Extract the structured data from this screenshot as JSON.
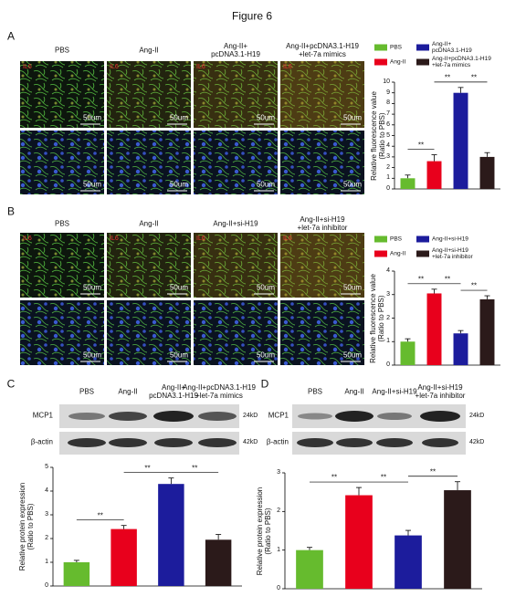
{
  "figure_title": "Figure 6",
  "panel_a": {
    "label": "A",
    "stain": "IL6",
    "scale": "50um"
  },
  "panel_b": {
    "label": "B",
    "stain": "IL6",
    "scale": "50um"
  },
  "panel_c": {
    "label": "C",
    "rows": [
      "MCP1",
      "β-actin"
    ],
    "sizes": [
      "24kD",
      "42kD"
    ]
  },
  "panel_d": {
    "label": "D",
    "rows": [
      "MCP1",
      "β-actin"
    ],
    "sizes": [
      "24kD",
      "42kD"
    ]
  },
  "chart_data": [
    {
      "type": "bar",
      "ylabel": "Relative fluorescence value\n(Ratio to PBS)",
      "categories": [
        "PBS",
        "Ang-II",
        "Ang-II+\npcDNA3.1-H19",
        "Ang-II+pcDNA3.1-H19\n+let-7a mimics"
      ],
      "values": [
        1.0,
        2.6,
        9.0,
        3.0
      ],
      "errors": [
        0.3,
        0.6,
        0.5,
        0.4
      ],
      "colors": [
        "#66bb2e",
        "#e8001c",
        "#1c1c9c",
        "#2b1a1a"
      ],
      "ylim": [
        0,
        10
      ],
      "yticks": [
        0,
        1,
        2,
        3,
        4,
        5,
        6,
        7,
        8,
        9,
        10
      ],
      "legend": true,
      "significance": [
        {
          "label": "**",
          "from": 0,
          "to": 1
        },
        {
          "label": "**",
          "from": 1,
          "to": 2
        },
        {
          "label": "**",
          "from": 2,
          "to": 3
        }
      ]
    },
    {
      "type": "bar",
      "ylabel": "Relative fluorescence value\n(Ratio to PBS)",
      "categories": [
        "PBS",
        "Ang-II",
        "Ang-II+si-H19",
        "Ang-II+si-H19\n+let-7a inhibitor"
      ],
      "values": [
        1.0,
        3.05,
        1.35,
        2.8
      ],
      "errors": [
        0.12,
        0.18,
        0.12,
        0.15
      ],
      "colors": [
        "#66bb2e",
        "#e8001c",
        "#1c1c9c",
        "#2b1a1a"
      ],
      "ylim": [
        0,
        4
      ],
      "yticks": [
        0,
        1,
        2,
        3,
        4
      ],
      "legend": true,
      "significance": [
        {
          "label": "**",
          "from": 0,
          "to": 1
        },
        {
          "label": "**",
          "from": 1,
          "to": 2
        },
        {
          "label": "**",
          "from": 2,
          "to": 3
        }
      ]
    },
    {
      "type": "bar",
      "ylabel": "Relative protein  expression\n(Ratio to PBS)",
      "categories": [
        "PBS",
        "Ang-II",
        "Ang-II+\npcDNA3.1-H19",
        "Ang-II+pcDNA3.1-H19\n+let-7a mimics"
      ],
      "values": [
        1.0,
        2.4,
        4.3,
        1.95
      ],
      "errors": [
        0.08,
        0.15,
        0.25,
        0.22
      ],
      "colors": [
        "#66bb2e",
        "#e8001c",
        "#1c1c9c",
        "#2b1a1a"
      ],
      "ylim": [
        0,
        5
      ],
      "yticks": [
        0,
        1,
        2,
        3,
        4,
        5
      ],
      "legend": false,
      "significance": [
        {
          "label": "**",
          "from": 0,
          "to": 1
        },
        {
          "label": "**",
          "from": 1,
          "to": 2
        },
        {
          "label": "**",
          "from": 2,
          "to": 3
        }
      ]
    },
    {
      "type": "bar",
      "ylabel": "Relative protein  expression\n(Ratio to PBS)",
      "categories": [
        "PBS",
        "Ang-II",
        "Ang-II+si-H19",
        "Ang-II+si-H19\n+let-7a inhibitor"
      ],
      "values": [
        1.0,
        2.42,
        1.38,
        2.55
      ],
      "errors": [
        0.07,
        0.2,
        0.13,
        0.22
      ],
      "colors": [
        "#66bb2e",
        "#e8001c",
        "#1c1c9c",
        "#2b1a1a"
      ],
      "ylim": [
        0,
        3
      ],
      "yticks": [
        0,
        1,
        2,
        3
      ],
      "legend": false,
      "significance": [
        {
          "label": "**",
          "from": 0,
          "to": 1
        },
        {
          "label": "**",
          "from": 1,
          "to": 2
        },
        {
          "label": "**",
          "from": 2,
          "to": 3
        }
      ]
    }
  ]
}
